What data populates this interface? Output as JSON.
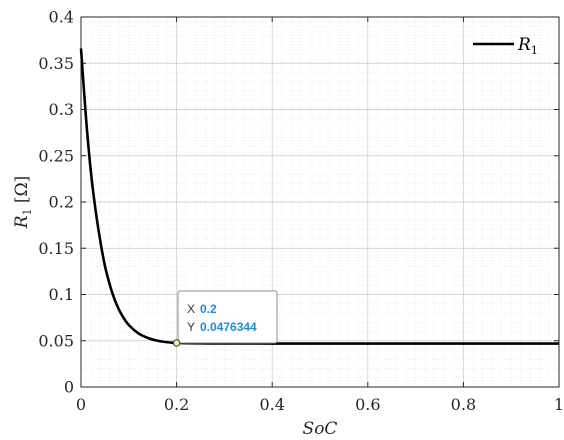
{
  "chart_data": {
    "type": "line",
    "title": "",
    "xlabel": "SoC",
    "ylabel": "R1 [Ω]",
    "ylabel_parts": {
      "main": "R",
      "sub": "1",
      "unit": " [Ω]"
    },
    "xlim": [
      0,
      1
    ],
    "ylim": [
      0,
      0.4
    ],
    "x_ticks": [
      "0",
      "0.2",
      "0.4",
      "0.6",
      "0.8",
      "1"
    ],
    "y_ticks": [
      "0",
      "0.05",
      "0.1",
      "0.15",
      "0.2",
      "0.25",
      "0.3",
      "0.35",
      "0.4"
    ],
    "grid": true,
    "minor_grid": true,
    "legend_position": "top-right",
    "series": [
      {
        "name": "R1",
        "name_parts": {
          "main": "R",
          "sub": "1"
        },
        "color": "#000000",
        "x": [
          0,
          0.01,
          0.02,
          0.03,
          0.04,
          0.05,
          0.06,
          0.07,
          0.08,
          0.09,
          0.1,
          0.12,
          0.14,
          0.16,
          0.18,
          0.2,
          0.25,
          0.3,
          0.4,
          0.5,
          0.6,
          0.7,
          0.8,
          0.9,
          1.0
        ],
        "y": [
          0.366,
          0.294,
          0.236,
          0.193,
          0.159,
          0.131,
          0.111,
          0.095,
          0.083,
          0.074,
          0.067,
          0.058,
          0.053,
          0.05,
          0.0485,
          0.0476,
          0.0472,
          0.0471,
          0.047,
          0.047,
          0.047,
          0.047,
          0.047,
          0.047,
          0.047
        ]
      }
    ],
    "datatip": {
      "x_key": "X",
      "x_value": "0.2",
      "y_key": "Y",
      "y_value": "0.0476344",
      "point": {
        "x": 0.2,
        "y": 0.0476344
      }
    }
  }
}
